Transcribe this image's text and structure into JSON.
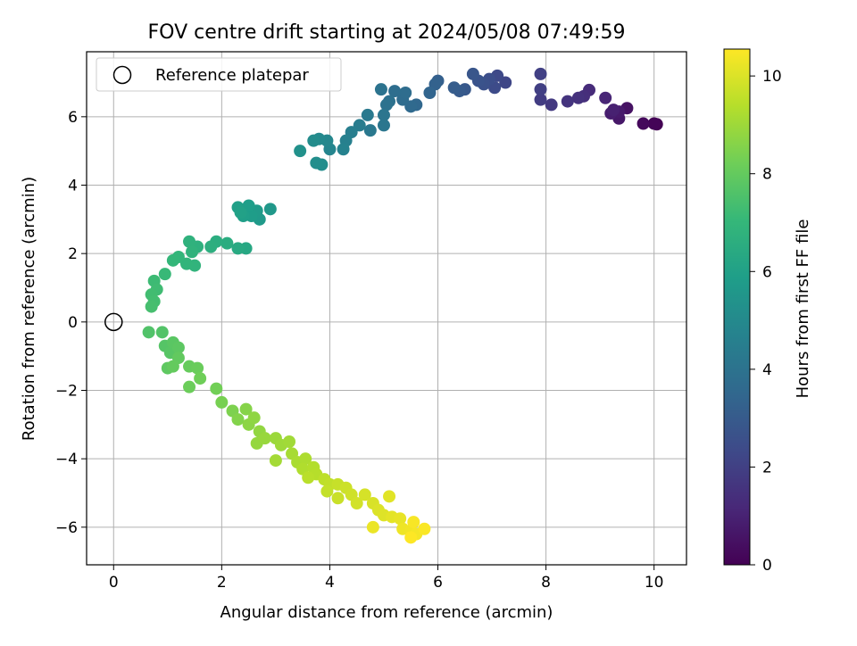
{
  "chart_data": {
    "type": "scatter",
    "title": "FOV centre drift starting at 2024/05/08 07:49:59",
    "xlabel": "Angular distance from reference (arcmin)",
    "ylabel": "Rotation from reference (arcmin)",
    "xlim": [
      -0.5,
      10.6
    ],
    "ylim": [
      -7.1,
      7.9
    ],
    "xticks": [
      0,
      2,
      4,
      6,
      8,
      10
    ],
    "yticks": [
      -6,
      -4,
      -2,
      0,
      2,
      4,
      6
    ],
    "grid": true,
    "colormap": "viridis",
    "colorbar": {
      "label": "Hours from first FF file",
      "range": [
        0,
        10.55
      ],
      "ticks": [
        0,
        2,
        4,
        6,
        8,
        10
      ]
    },
    "legend": {
      "placement": "top-left",
      "entries": [
        {
          "label": "Reference platepar",
          "marker": "open-circle"
        }
      ]
    },
    "reference_point": {
      "x": 0,
      "y": 0
    },
    "series": [
      {
        "values": [
          {
            "x": 10.05,
            "y": 5.78,
            "hours": 0.0
          },
          {
            "x": 10.0,
            "y": 5.8,
            "hours": 0.1
          },
          {
            "x": 9.8,
            "y": 5.8,
            "hours": 0.25
          },
          {
            "x": 9.5,
            "y": 6.25,
            "hours": 0.5
          },
          {
            "x": 9.35,
            "y": 5.95,
            "hours": 0.65
          },
          {
            "x": 9.35,
            "y": 6.15,
            "hours": 0.75
          },
          {
            "x": 9.2,
            "y": 6.1,
            "hours": 0.85
          },
          {
            "x": 9.25,
            "y": 6.2,
            "hours": 0.95
          },
          {
            "x": 9.1,
            "y": 6.55,
            "hours": 1.1
          },
          {
            "x": 8.8,
            "y": 6.78,
            "hours": 1.3
          },
          {
            "x": 8.7,
            "y": 6.6,
            "hours": 1.4
          },
          {
            "x": 8.6,
            "y": 6.55,
            "hours": 1.5
          },
          {
            "x": 8.4,
            "y": 6.45,
            "hours": 1.6
          },
          {
            "x": 8.1,
            "y": 6.35,
            "hours": 1.75
          },
          {
            "x": 7.9,
            "y": 6.5,
            "hours": 1.85
          },
          {
            "x": 7.9,
            "y": 6.8,
            "hours": 1.95
          },
          {
            "x": 7.9,
            "y": 7.25,
            "hours": 2.0
          },
          {
            "x": 7.25,
            "y": 7.0,
            "hours": 2.2
          },
          {
            "x": 7.1,
            "y": 7.2,
            "hours": 2.3
          },
          {
            "x": 7.05,
            "y": 6.85,
            "hours": 2.4
          },
          {
            "x": 6.95,
            "y": 7.1,
            "hours": 2.5
          },
          {
            "x": 6.85,
            "y": 6.95,
            "hours": 2.6
          },
          {
            "x": 6.75,
            "y": 7.05,
            "hours": 2.7
          },
          {
            "x": 6.65,
            "y": 7.25,
            "hours": 2.8
          },
          {
            "x": 6.5,
            "y": 6.8,
            "hours": 2.9
          },
          {
            "x": 6.4,
            "y": 6.75,
            "hours": 3.0
          },
          {
            "x": 6.3,
            "y": 6.85,
            "hours": 3.1
          },
          {
            "x": 6.0,
            "y": 7.05,
            "hours": 3.2
          },
          {
            "x": 5.95,
            "y": 6.95,
            "hours": 3.3
          },
          {
            "x": 5.85,
            "y": 6.7,
            "hours": 3.4
          },
          {
            "x": 5.6,
            "y": 6.35,
            "hours": 3.5
          },
          {
            "x": 5.5,
            "y": 6.3,
            "hours": 3.6
          },
          {
            "x": 5.35,
            "y": 6.5,
            "hours": 3.7
          },
          {
            "x": 5.4,
            "y": 6.7,
            "hours": 3.75
          },
          {
            "x": 5.2,
            "y": 6.75,
            "hours": 3.8
          },
          {
            "x": 5.1,
            "y": 6.45,
            "hours": 3.9
          },
          {
            "x": 5.05,
            "y": 6.35,
            "hours": 3.95
          },
          {
            "x": 4.95,
            "y": 6.8,
            "hours": 4.0
          },
          {
            "x": 5.0,
            "y": 6.05,
            "hours": 4.1
          },
          {
            "x": 5.0,
            "y": 5.75,
            "hours": 4.15
          },
          {
            "x": 4.75,
            "y": 5.6,
            "hours": 4.25
          },
          {
            "x": 4.7,
            "y": 6.05,
            "hours": 4.3
          },
          {
            "x": 4.55,
            "y": 5.75,
            "hours": 4.4
          },
          {
            "x": 4.4,
            "y": 5.55,
            "hours": 4.5
          },
          {
            "x": 4.3,
            "y": 5.3,
            "hours": 4.6
          },
          {
            "x": 4.25,
            "y": 5.05,
            "hours": 4.7
          },
          {
            "x": 4.0,
            "y": 5.05,
            "hours": 4.8
          },
          {
            "x": 3.95,
            "y": 5.3,
            "hours": 4.9
          },
          {
            "x": 3.8,
            "y": 5.35,
            "hours": 5.0
          },
          {
            "x": 3.7,
            "y": 5.3,
            "hours": 5.1
          },
          {
            "x": 3.85,
            "y": 4.6,
            "hours": 5.15
          },
          {
            "x": 3.75,
            "y": 4.65,
            "hours": 5.2
          },
          {
            "x": 3.45,
            "y": 5.0,
            "hours": 5.3
          },
          {
            "x": 2.9,
            "y": 3.3,
            "hours": 5.6
          },
          {
            "x": 2.7,
            "y": 3.0,
            "hours": 5.7
          },
          {
            "x": 2.65,
            "y": 3.25,
            "hours": 5.75
          },
          {
            "x": 2.55,
            "y": 3.1,
            "hours": 5.8
          },
          {
            "x": 2.5,
            "y": 3.4,
            "hours": 5.85
          },
          {
            "x": 2.4,
            "y": 3.1,
            "hours": 5.9
          },
          {
            "x": 2.3,
            "y": 3.35,
            "hours": 5.95
          },
          {
            "x": 2.35,
            "y": 3.2,
            "hours": 6.0
          },
          {
            "x": 2.45,
            "y": 2.15,
            "hours": 6.3
          },
          {
            "x": 2.3,
            "y": 2.15,
            "hours": 6.4
          },
          {
            "x": 2.1,
            "y": 2.3,
            "hours": 6.5
          },
          {
            "x": 1.9,
            "y": 2.35,
            "hours": 6.55
          },
          {
            "x": 1.8,
            "y": 2.2,
            "hours": 6.6
          },
          {
            "x": 1.55,
            "y": 2.2,
            "hours": 6.7
          },
          {
            "x": 1.4,
            "y": 2.35,
            "hours": 6.75
          },
          {
            "x": 1.45,
            "y": 2.05,
            "hours": 6.8
          },
          {
            "x": 1.5,
            "y": 1.65,
            "hours": 6.85
          },
          {
            "x": 1.35,
            "y": 1.7,
            "hours": 6.9
          },
          {
            "x": 1.2,
            "y": 1.9,
            "hours": 6.95
          },
          {
            "x": 1.1,
            "y": 1.8,
            "hours": 7.0
          },
          {
            "x": 0.95,
            "y": 1.4,
            "hours": 7.1
          },
          {
            "x": 0.75,
            "y": 1.2,
            "hours": 7.2
          },
          {
            "x": 0.8,
            "y": 0.95,
            "hours": 7.25
          },
          {
            "x": 0.7,
            "y": 0.8,
            "hours": 7.3
          },
          {
            "x": 0.75,
            "y": 0.6,
            "hours": 7.35
          },
          {
            "x": 0.7,
            "y": 0.45,
            "hours": 7.4
          },
          {
            "x": 0.65,
            "y": -0.3,
            "hours": 7.6
          },
          {
            "x": 0.9,
            "y": -0.3,
            "hours": 7.65
          },
          {
            "x": 0.95,
            "y": -0.7,
            "hours": 7.7
          },
          {
            "x": 1.05,
            "y": -0.9,
            "hours": 7.75
          },
          {
            "x": 1.1,
            "y": -0.6,
            "hours": 7.8
          },
          {
            "x": 1.2,
            "y": -0.75,
            "hours": 7.85
          },
          {
            "x": 1.0,
            "y": -1.35,
            "hours": 7.9
          },
          {
            "x": 1.2,
            "y": -1.05,
            "hours": 7.95
          },
          {
            "x": 1.1,
            "y": -1.3,
            "hours": 8.0
          },
          {
            "x": 1.4,
            "y": -1.3,
            "hours": 8.05
          },
          {
            "x": 1.55,
            "y": -1.35,
            "hours": 8.1
          },
          {
            "x": 1.4,
            "y": -1.9,
            "hours": 8.15
          },
          {
            "x": 1.6,
            "y": -1.65,
            "hours": 8.2
          },
          {
            "x": 1.9,
            "y": -1.95,
            "hours": 8.25
          },
          {
            "x": 2.0,
            "y": -2.35,
            "hours": 8.35
          },
          {
            "x": 2.2,
            "y": -2.6,
            "hours": 8.45
          },
          {
            "x": 2.3,
            "y": -2.85,
            "hours": 8.55
          },
          {
            "x": 2.45,
            "y": -2.55,
            "hours": 8.6
          },
          {
            "x": 2.5,
            "y": -3.0,
            "hours": 8.7
          },
          {
            "x": 2.6,
            "y": -2.8,
            "hours": 8.75
          },
          {
            "x": 2.7,
            "y": -3.2,
            "hours": 8.8
          },
          {
            "x": 2.65,
            "y": -3.55,
            "hours": 8.85
          },
          {
            "x": 2.8,
            "y": -3.4,
            "hours": 8.9
          },
          {
            "x": 3.0,
            "y": -3.4,
            "hours": 8.95
          },
          {
            "x": 3.1,
            "y": -3.6,
            "hours": 9.0
          },
          {
            "x": 3.25,
            "y": -3.5,
            "hours": 9.05
          },
          {
            "x": 3.0,
            "y": -4.05,
            "hours": 9.1
          },
          {
            "x": 3.3,
            "y": -3.85,
            "hours": 9.15
          },
          {
            "x": 3.4,
            "y": -4.1,
            "hours": 9.2
          },
          {
            "x": 3.55,
            "y": -4.0,
            "hours": 9.25
          },
          {
            "x": 3.5,
            "y": -4.3,
            "hours": 9.3
          },
          {
            "x": 3.7,
            "y": -4.25,
            "hours": 9.35
          },
          {
            "x": 3.75,
            "y": -4.45,
            "hours": 9.4
          },
          {
            "x": 3.6,
            "y": -4.55,
            "hours": 9.45
          },
          {
            "x": 3.9,
            "y": -4.6,
            "hours": 9.5
          },
          {
            "x": 4.0,
            "y": -4.75,
            "hours": 9.55
          },
          {
            "x": 3.95,
            "y": -4.95,
            "hours": 9.6
          },
          {
            "x": 4.15,
            "y": -4.75,
            "hours": 9.65
          },
          {
            "x": 4.15,
            "y": -5.15,
            "hours": 9.7
          },
          {
            "x": 4.3,
            "y": -4.85,
            "hours": 9.75
          },
          {
            "x": 4.4,
            "y": -5.05,
            "hours": 9.8
          },
          {
            "x": 4.5,
            "y": -5.3,
            "hours": 9.85
          },
          {
            "x": 4.65,
            "y": -5.05,
            "hours": 9.9
          },
          {
            "x": 4.8,
            "y": -5.3,
            "hours": 9.95
          },
          {
            "x": 4.9,
            "y": -5.5,
            "hours": 10.0
          },
          {
            "x": 5.0,
            "y": -5.65,
            "hours": 10.05
          },
          {
            "x": 5.1,
            "y": -5.1,
            "hours": 10.1
          },
          {
            "x": 5.15,
            "y": -5.7,
            "hours": 10.15
          },
          {
            "x": 5.3,
            "y": -5.75,
            "hours": 10.2
          },
          {
            "x": 4.8,
            "y": -6.0,
            "hours": 10.25
          },
          {
            "x": 5.35,
            "y": -6.05,
            "hours": 10.3
          },
          {
            "x": 5.5,
            "y": -6.1,
            "hours": 10.35
          },
          {
            "x": 5.6,
            "y": -6.2,
            "hours": 10.4
          },
          {
            "x": 5.55,
            "y": -5.85,
            "hours": 10.45
          },
          {
            "x": 5.75,
            "y": -6.05,
            "hours": 10.5
          },
          {
            "x": 5.5,
            "y": -6.3,
            "hours": 10.55
          }
        ]
      }
    ]
  }
}
